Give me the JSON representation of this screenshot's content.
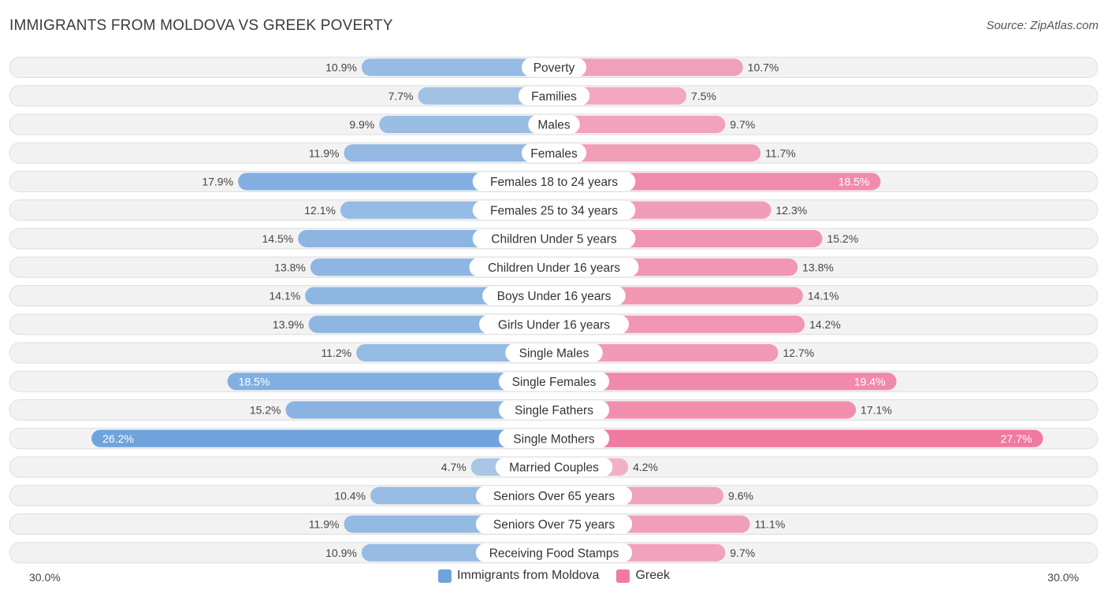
{
  "header": {
    "title": "IMMIGRANTS FROM MOLDOVA VS GREEK POVERTY",
    "source": "Source: ZipAtlas.com"
  },
  "axis": {
    "left_label": "30.0%",
    "right_label": "30.0%"
  },
  "legend": {
    "left": {
      "label": "Immigrants from Moldova",
      "color": "#6fa3dd"
    },
    "right": {
      "label": "Greek",
      "color": "#f07aa0"
    }
  },
  "chart_data": {
    "type": "bar",
    "orientation": "diverging-horizontal",
    "title": "IMMIGRANTS FROM MOLDOVA VS GREEK POVERTY",
    "unit": "%",
    "xlim": [
      -30,
      30
    ],
    "categories": [
      "Poverty",
      "Families",
      "Males",
      "Females",
      "Females 18 to 24 years",
      "Females 25 to 34 years",
      "Children Under 5 years",
      "Children Under 16 years",
      "Boys Under 16 years",
      "Girls Under 16 years",
      "Single Males",
      "Single Females",
      "Single Fathers",
      "Single Mothers",
      "Married Couples",
      "Seniors Over 65 years",
      "Seniors Over 75 years",
      "Receiving Food Stamps"
    ],
    "series": [
      {
        "name": "Immigrants from Moldova",
        "color": "#6fa3dd",
        "values": [
          10.9,
          7.7,
          9.9,
          11.9,
          17.9,
          12.1,
          14.5,
          13.8,
          14.1,
          13.9,
          11.2,
          18.5,
          15.2,
          26.2,
          4.7,
          10.4,
          11.9,
          10.9
        ]
      },
      {
        "name": "Greek",
        "color": "#f07aa0",
        "values": [
          10.7,
          7.5,
          9.7,
          11.7,
          18.5,
          12.3,
          15.2,
          13.8,
          14.1,
          14.2,
          12.7,
          19.4,
          17.1,
          27.7,
          4.2,
          9.6,
          11.1,
          9.7
        ]
      }
    ]
  }
}
